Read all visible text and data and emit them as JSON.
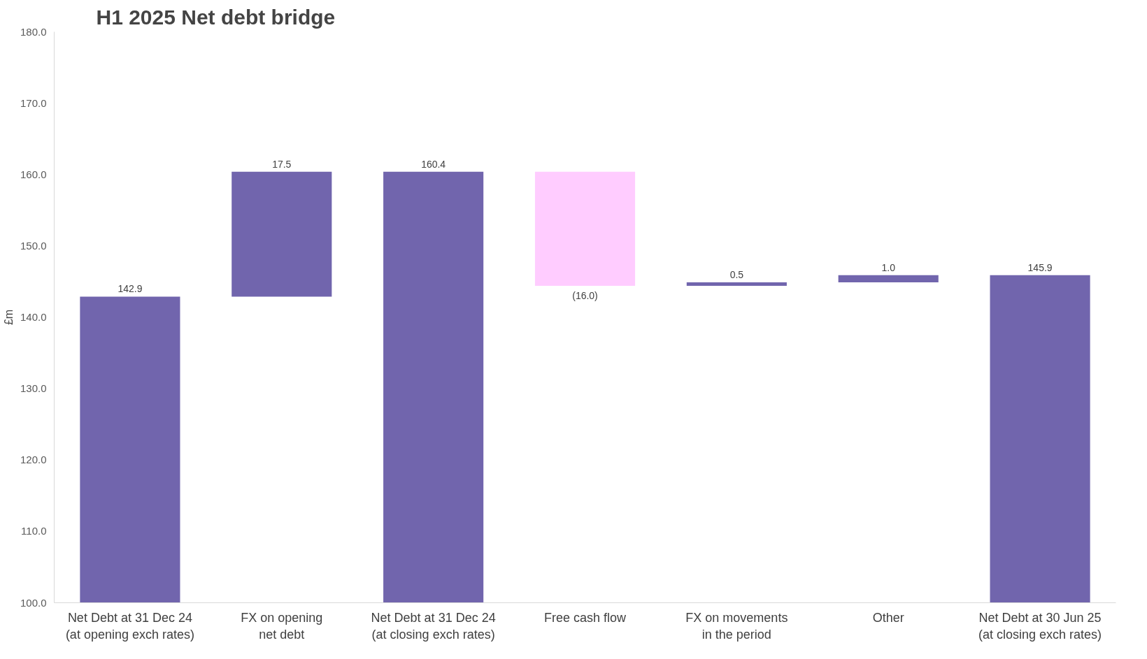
{
  "chart_data": {
    "type": "bar",
    "title": "H1 2025 Net debt bridge",
    "ylabel": "£m",
    "categories": [
      "Net Debt at 31 Dec 24\n(at opening exch rates)",
      "FX on opening\nnet debt",
      "Net Debt at 31 Dec 24\n(at closing exch rates)",
      "Free cash flow",
      "FX on movements\nin the period",
      "Other",
      "Net Debt at 30 Jun 25\n(at closing exch rates)"
    ],
    "values": [
      142.9,
      17.5,
      160.4,
      -16.0,
      0.5,
      1.0,
      145.9
    ],
    "base": [
      0,
      142.9,
      0,
      160.4,
      144.4,
      144.9,
      0
    ],
    "colors": [
      "#7165ad",
      "#7165ad",
      "#7165ad",
      "#ffccff",
      "#7165ad",
      "#7165ad",
      "#7165ad"
    ],
    "value_labels": [
      "142.9",
      "17.5",
      "160.4",
      "(16.0)",
      "0.5",
      "1.0",
      "145.9"
    ],
    "ylim": [
      100,
      180
    ],
    "yticks": [
      {
        "value": 100,
        "label": "100.0"
      },
      {
        "value": 110,
        "label": "110.0"
      },
      {
        "value": 120,
        "label": "120.0"
      },
      {
        "value": 130,
        "label": "130.0"
      },
      {
        "value": 140,
        "label": "140.0"
      },
      {
        "value": 150,
        "label": "150.0"
      },
      {
        "value": 160,
        "label": "160.0"
      },
      {
        "value": 170,
        "label": "170.0"
      },
      {
        "value": 180,
        "label": "180.0"
      }
    ],
    "grid": false
  }
}
